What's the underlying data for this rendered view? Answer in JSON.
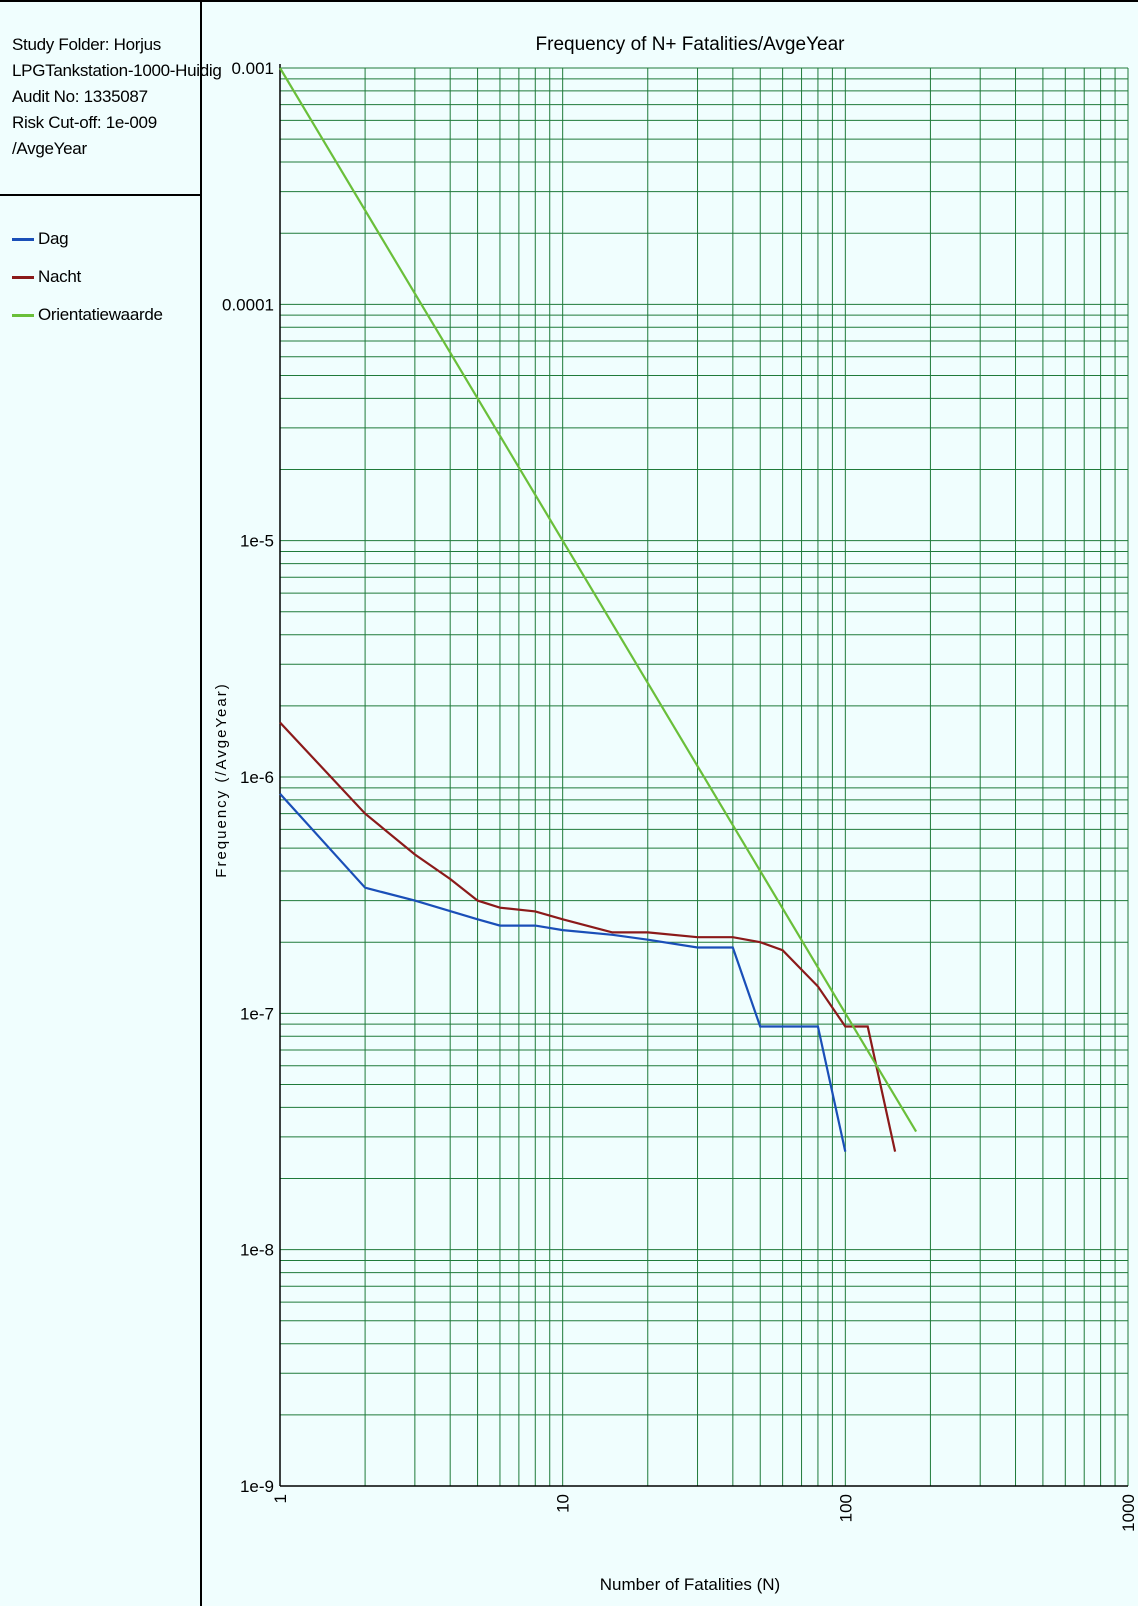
{
  "info": {
    "lines": [
      "Study Folder: Horjus",
      "LPGTankstation-1000-Huidig",
      "Audit No: 1335087",
      "Risk Cut-off: 1e-009",
      "/AvgeYear"
    ]
  },
  "legend": [
    {
      "label": "Dag",
      "color": "#1a4fb8"
    },
    {
      "label": "Nacht",
      "color": "#8b1a1a"
    },
    {
      "label": "Orientatiewaarde",
      "color": "#6abf3a"
    }
  ],
  "colors": {
    "background": "#f0fefe",
    "grid": "#1f7a3a",
    "axis": "#000000"
  },
  "chart_data": {
    "type": "line",
    "title": "Frequency of N+ Fatalities/AvgeYear",
    "xlabel": "Number of Fatalities (N)",
    "ylabel": "Frequency (/AvgeYear)",
    "x_scale": "log",
    "y_scale": "log",
    "xlim": [
      1,
      1000
    ],
    "ylim": [
      1e-09,
      0.001
    ],
    "grid": true,
    "x_ticks": [
      {
        "value": 1,
        "label": "1"
      },
      {
        "value": 10,
        "label": "10"
      },
      {
        "value": 100,
        "label": "100"
      },
      {
        "value": 1000,
        "label": "1000"
      }
    ],
    "y_ticks": [
      {
        "value": 0.001,
        "label": "0.001"
      },
      {
        "value": 0.0001,
        "label": "0.0001"
      },
      {
        "value": 1e-05,
        "label": "1e-5"
      },
      {
        "value": 1e-06,
        "label": "1e-6"
      },
      {
        "value": 1e-07,
        "label": "1e-7"
      },
      {
        "value": 1e-08,
        "label": "1e-8"
      },
      {
        "value": 1e-09,
        "label": "1e-9"
      }
    ],
    "series": [
      {
        "name": "Dag",
        "color": "#1a4fb8",
        "x": [
          1,
          2,
          3,
          5,
          6,
          8,
          10,
          15,
          20,
          30,
          40,
          50,
          80,
          100
        ],
        "y": [
          8.5e-07,
          3.4e-07,
          3e-07,
          2.5e-07,
          2.35e-07,
          2.35e-07,
          2.25e-07,
          2.15e-07,
          2.05e-07,
          1.9e-07,
          1.9e-07,
          8.8e-08,
          8.8e-08,
          2.6e-08
        ]
      },
      {
        "name": "Nacht",
        "color": "#8b1a1a",
        "x": [
          1,
          2,
          3,
          4,
          5,
          6,
          8,
          10,
          15,
          20,
          30,
          40,
          50,
          60,
          80,
          100,
          120,
          150
        ],
        "y": [
          1.7e-06,
          7e-07,
          4.7e-07,
          3.7e-07,
          3e-07,
          2.8e-07,
          2.7e-07,
          2.5e-07,
          2.2e-07,
          2.2e-07,
          2.1e-07,
          2.1e-07,
          2e-07,
          1.85e-07,
          1.3e-07,
          8.8e-08,
          8.8e-08,
          2.6e-08
        ]
      },
      {
        "name": "Orientatiewaarde",
        "color": "#6abf3a",
        "x": [
          1,
          178
        ],
        "y": [
          0.001,
          3.16e-08
        ]
      }
    ]
  }
}
